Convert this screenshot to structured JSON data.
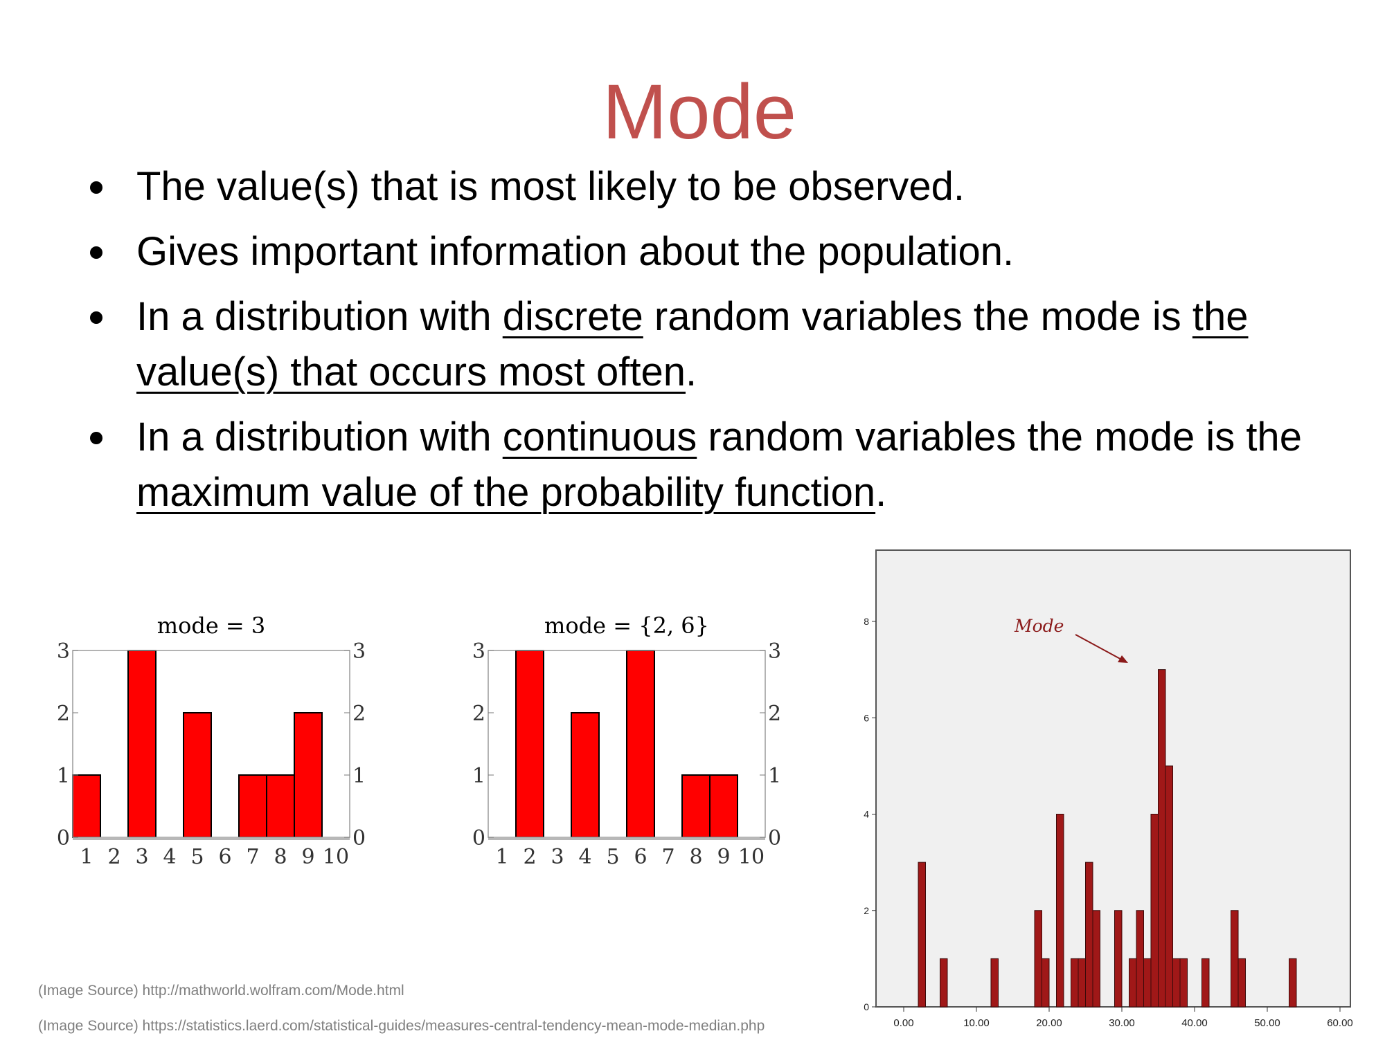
{
  "slide": {
    "title": "Mode",
    "bullets": [
      {
        "parts": [
          {
            "text": "The value(s) that is most likely to be observed."
          }
        ]
      },
      {
        "parts": [
          {
            "text": "Gives important information about the population."
          }
        ]
      },
      {
        "parts": [
          {
            "text": "In a distribution with "
          },
          {
            "text": "discrete",
            "u": true
          },
          {
            "text": " random variables the mode is "
          },
          {
            "text": "the value(s) that occurs most often",
            "u": true
          },
          {
            "text": "."
          }
        ]
      },
      {
        "parts": [
          {
            "text": "In a distribution with "
          },
          {
            "text": "continuous",
            "u": true
          },
          {
            "text": " random variables the mode is the "
          },
          {
            "text": "maximum value of the probability function",
            "u": true
          },
          {
            "text": "."
          }
        ]
      }
    ],
    "sources": [
      "(Image Source) http://mathworld.wolfram.com/Mode.html",
      "(Image Source) https://statistics.laerd.com/statistical-guides/measures-central-tendency-mean-mode-median.php"
    ]
  },
  "colors": {
    "title": "#c0504d",
    "bar_red": "#ff0000",
    "bar_dark": "#a01818",
    "annotation": "#8b1a1a",
    "panel": "#f0f0f0"
  },
  "chart_data": [
    {
      "type": "bar",
      "title": "mode = 3",
      "categories": [
        "1",
        "2",
        "3",
        "4",
        "5",
        "6",
        "7",
        "8",
        "9",
        "10"
      ],
      "values": [
        1,
        0,
        3,
        0,
        2,
        0,
        1,
        1,
        2,
        0
      ],
      "yticks": [
        "0",
        "1",
        "2",
        "3"
      ],
      "ylim": [
        0,
        3
      ]
    },
    {
      "type": "bar",
      "title": "mode = {2, 6}",
      "categories": [
        "1",
        "2",
        "3",
        "4",
        "5",
        "6",
        "7",
        "8",
        "9",
        "10"
      ],
      "values": [
        0,
        3,
        0,
        2,
        0,
        3,
        0,
        1,
        1,
        0
      ],
      "yticks": [
        "0",
        "1",
        "2",
        "3"
      ],
      "ylim": [
        0,
        3
      ]
    },
    {
      "type": "bar",
      "annotation": "Mode",
      "xlim": [
        0,
        60
      ],
      "ylim": [
        0,
        8
      ],
      "xticks": [
        "0.00",
        "10.00",
        "20.00",
        "30.00",
        "40.00",
        "50.00",
        "60.00"
      ],
      "yticks": [
        "0",
        "2",
        "4",
        "6",
        "8"
      ],
      "bin_width": 1,
      "bins": [
        {
          "x": 2,
          "y": 3
        },
        {
          "x": 5,
          "y": 1
        },
        {
          "x": 12,
          "y": 1
        },
        {
          "x": 18,
          "y": 2
        },
        {
          "x": 19,
          "y": 1
        },
        {
          "x": 21,
          "y": 4
        },
        {
          "x": 23,
          "y": 1
        },
        {
          "x": 24,
          "y": 1
        },
        {
          "x": 25,
          "y": 3
        },
        {
          "x": 26,
          "y": 2
        },
        {
          "x": 29,
          "y": 2
        },
        {
          "x": 31,
          "y": 1
        },
        {
          "x": 32,
          "y": 2
        },
        {
          "x": 33,
          "y": 1
        },
        {
          "x": 34,
          "y": 4
        },
        {
          "x": 35,
          "y": 7
        },
        {
          "x": 36,
          "y": 5
        },
        {
          "x": 37,
          "y": 1
        },
        {
          "x": 38,
          "y": 1
        },
        {
          "x": 41,
          "y": 1
        },
        {
          "x": 45,
          "y": 2
        },
        {
          "x": 46,
          "y": 1
        },
        {
          "x": 53,
          "y": 1
        }
      ]
    }
  ]
}
